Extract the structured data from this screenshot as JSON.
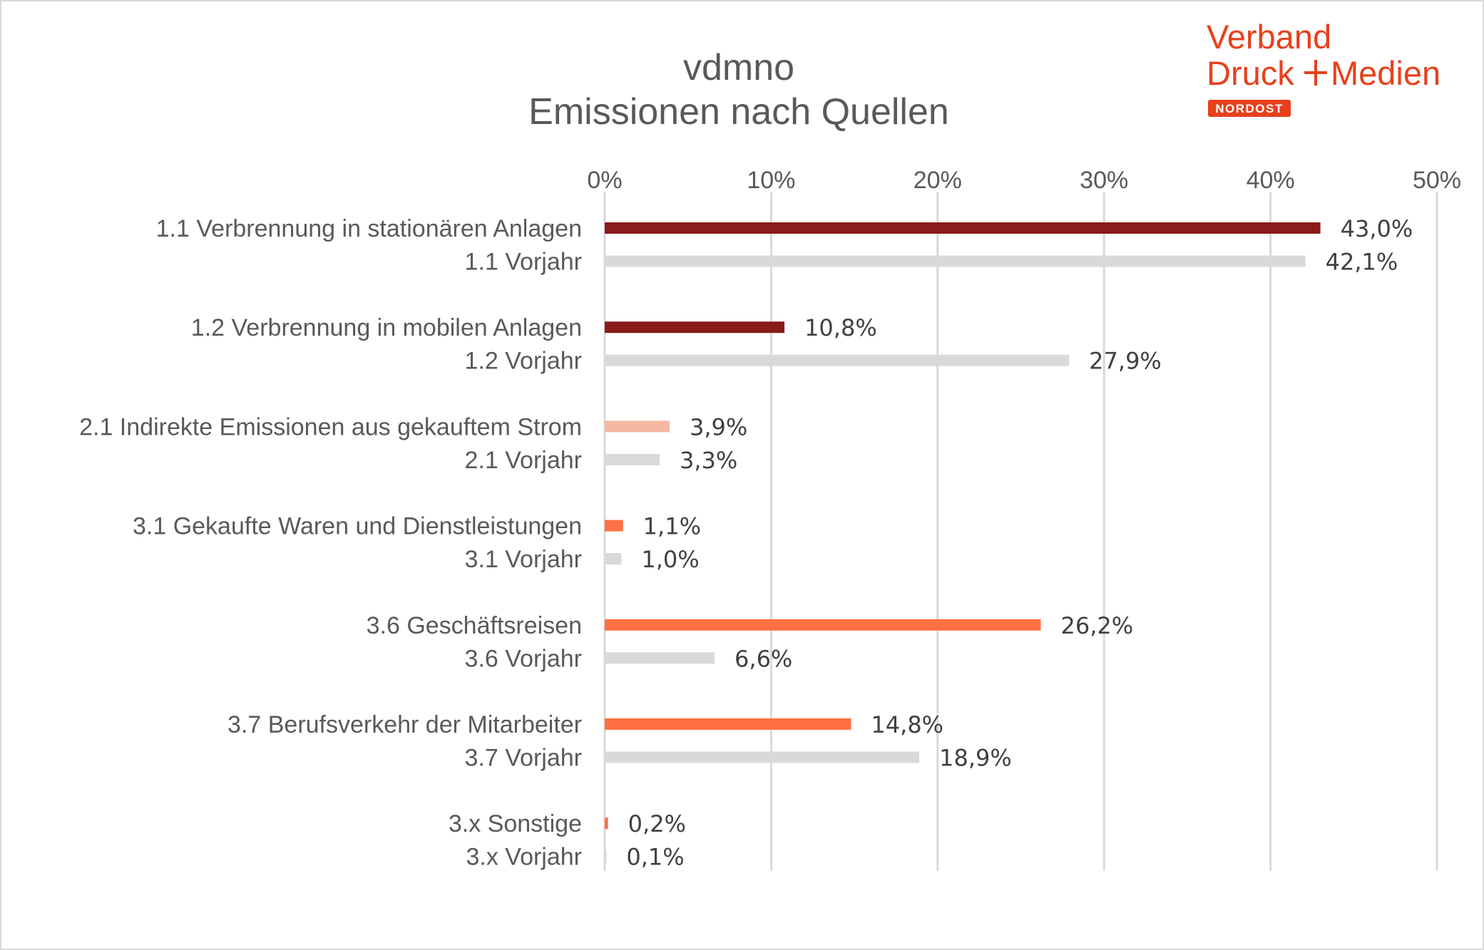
{
  "logo": {
    "line1": "Verband",
    "line2_left": "Druck",
    "line2_right": "Medien",
    "badge": "NORDOST",
    "color": "#e8401c"
  },
  "chart_data": {
    "type": "bar",
    "orientation": "horizontal",
    "title": [
      "vdmno",
      "Emissionen nach Quellen"
    ],
    "xlim": [
      0,
      50
    ],
    "x_ticks": [
      0,
      10,
      20,
      30,
      40,
      50
    ],
    "x_tick_labels": [
      "0%",
      "10%",
      "20%",
      "30%",
      "40%",
      "50%"
    ],
    "grid": true,
    "categories": [
      "1.1 Verbrennung in stationären Anlagen",
      "1.1 Vorjahr",
      "1.2 Verbrennung in mobilen Anlagen",
      "1.2 Vorjahr",
      "2.1 Indirekte Emissionen aus gekauftem Strom",
      "2.1 Vorjahr",
      "3.1 Gekaufte Waren und Dienstleistungen",
      "3.1 Vorjahr",
      "3.6 Geschäftsreisen",
      "3.6 Vorjahr",
      "3.7 Berufsverkehr der Mitarbeiter",
      "3.7 Vorjahr",
      "3.x Sonstige",
      "3.x Vorjahr"
    ],
    "values": [
      43.0,
      42.1,
      10.8,
      27.9,
      3.9,
      3.3,
      1.1,
      1.0,
      26.2,
      6.6,
      14.8,
      18.9,
      0.2,
      0.1
    ],
    "value_labels": [
      "43,0%",
      "42,1%",
      "10,8%",
      "27,9%",
      "3,9%",
      "3,3%",
      "1,1%",
      "1,0%",
      "26,2%",
      "6,6%",
      "14,8%",
      "18,9%",
      "0,2%",
      "0,1%"
    ],
    "colors": [
      "#8b1a1a",
      "#d9d9d9",
      "#8b1a1a",
      "#d9d9d9",
      "#f6b8a0",
      "#d9d9d9",
      "#ff7043",
      "#d9d9d9",
      "#ff7043",
      "#d9d9d9",
      "#ff7043",
      "#d9d9d9",
      "#ff7043",
      "#d9d9d9"
    ],
    "grid_color": "#d9d9d9"
  }
}
